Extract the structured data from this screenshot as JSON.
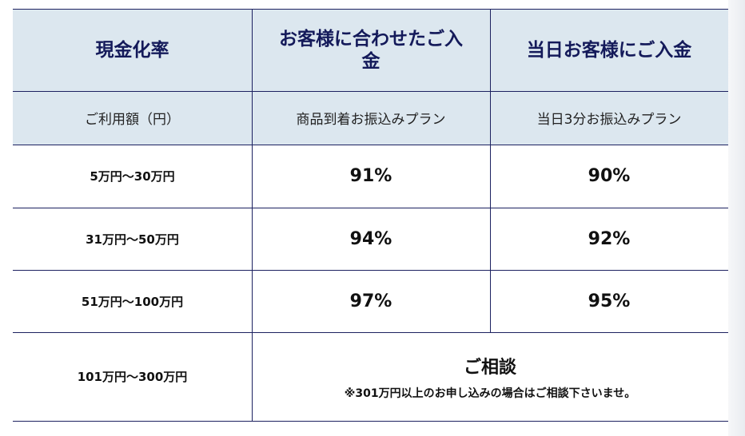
{
  "table": {
    "header": [
      "現金化率",
      "お客様に合わせたご入金",
      "当日お客様にご入金"
    ],
    "subheader": [
      "ご利用額（円）",
      "商品到着お振込みプラン",
      "当日3分お振込みプラン"
    ],
    "rows": [
      [
        "5万円～30万円",
        "91%",
        "90%"
      ],
      [
        "31万円～50万円",
        "94%",
        "92%"
      ],
      [
        "51万円～100万円",
        "97%",
        "95%"
      ]
    ],
    "last_row": {
      "range": "101万円～300万円",
      "title": "ご相談",
      "note": "※301万円以上のお申し込みの場合はご相談下さいませ。"
    }
  }
}
